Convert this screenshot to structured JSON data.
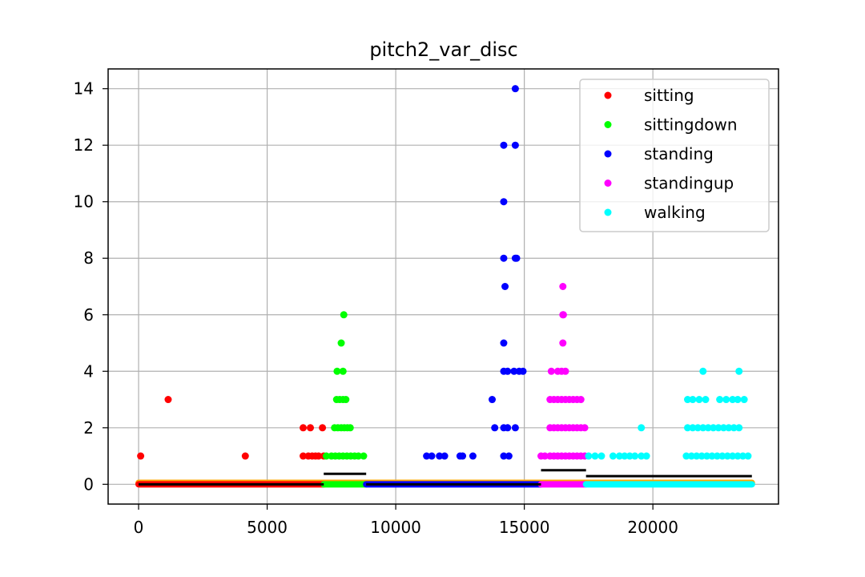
{
  "chart_data": {
    "type": "scatter",
    "title": "pitch2_var_disc",
    "xlabel": "",
    "ylabel": "",
    "xlim": [
      -1185,
      24885
    ],
    "ylim": [
      -0.7,
      14.7
    ],
    "x_ticks": [
      0,
      5000,
      10000,
      15000,
      20000
    ],
    "x_tick_labels": [
      "0",
      "5000",
      "10000",
      "15000",
      "20000"
    ],
    "y_ticks": [
      0,
      2,
      4,
      6,
      8,
      10,
      12,
      14
    ],
    "y_tick_labels": [
      "0",
      "2",
      "4",
      "6",
      "8",
      "10",
      "12",
      "14"
    ],
    "grid": true,
    "legend_position": "top-right",
    "series": [
      {
        "name": "sitting",
        "color": "#ff0000",
        "x_range": [
          0,
          7200
        ],
        "points": [
          [
            80,
            1
          ],
          [
            1150,
            3
          ],
          [
            4150,
            1
          ],
          [
            6400,
            2
          ],
          [
            6680,
            2
          ],
          [
            6400,
            1
          ],
          [
            6600,
            1
          ],
          [
            6750,
            1
          ],
          [
            6880,
            1
          ],
          [
            7000,
            1
          ],
          [
            7150,
            2
          ],
          [
            7200,
            1
          ]
        ]
      },
      {
        "name": "sittingdown",
        "color": "#00ff00",
        "x_range": [
          7200,
          8850
        ],
        "points": [
          [
            7980,
            6
          ],
          [
            7880,
            5
          ],
          [
            7720,
            4
          ],
          [
            7950,
            4
          ],
          [
            7700,
            3
          ],
          [
            7820,
            3
          ],
          [
            7950,
            3
          ],
          [
            8060,
            3
          ],
          [
            7620,
            2
          ],
          [
            7750,
            2
          ],
          [
            7880,
            2
          ],
          [
            8000,
            2
          ],
          [
            8120,
            2
          ],
          [
            8230,
            2
          ],
          [
            7300,
            1
          ],
          [
            7500,
            1
          ],
          [
            7650,
            1
          ],
          [
            7800,
            1
          ],
          [
            7950,
            1
          ],
          [
            8100,
            1
          ],
          [
            8250,
            1
          ],
          [
            8400,
            1
          ],
          [
            8550,
            1
          ],
          [
            8750,
            1
          ]
        ]
      },
      {
        "name": "standing",
        "color": "#0000ff",
        "x_range": [
          8850,
          15650
        ],
        "points": [
          [
            14650,
            14
          ],
          [
            14200,
            12
          ],
          [
            14650,
            12
          ],
          [
            14200,
            10
          ],
          [
            14200,
            8
          ],
          [
            14650,
            8
          ],
          [
            14700,
            8
          ],
          [
            14250,
            7
          ],
          [
            14200,
            5
          ],
          [
            14200,
            4
          ],
          [
            14350,
            4
          ],
          [
            14600,
            4
          ],
          [
            14800,
            4
          ],
          [
            14950,
            4
          ],
          [
            13750,
            3
          ],
          [
            13850,
            2
          ],
          [
            14200,
            2
          ],
          [
            14350,
            2
          ],
          [
            14650,
            2
          ],
          [
            11200,
            1
          ],
          [
            11400,
            1
          ],
          [
            11700,
            1
          ],
          [
            11900,
            1
          ],
          [
            12500,
            1
          ],
          [
            12600,
            1
          ],
          [
            13000,
            1
          ],
          [
            14200,
            1
          ],
          [
            14400,
            1
          ]
        ]
      },
      {
        "name": "standingup",
        "color": "#ff00ff",
        "x_range": [
          15650,
          17400
        ],
        "points": [
          [
            16500,
            7
          ],
          [
            16500,
            6
          ],
          [
            16520,
            6
          ],
          [
            16500,
            5
          ],
          [
            16050,
            4
          ],
          [
            16300,
            4
          ],
          [
            16450,
            4
          ],
          [
            16600,
            4
          ],
          [
            16000,
            3
          ],
          [
            16150,
            3
          ],
          [
            16300,
            3
          ],
          [
            16450,
            3
          ],
          [
            16600,
            3
          ],
          [
            16750,
            3
          ],
          [
            16900,
            3
          ],
          [
            17050,
            3
          ],
          [
            17200,
            3
          ],
          [
            16000,
            2
          ],
          [
            16150,
            2
          ],
          [
            16300,
            2
          ],
          [
            16450,
            2
          ],
          [
            16600,
            2
          ],
          [
            16750,
            2
          ],
          [
            16900,
            2
          ],
          [
            17050,
            2
          ],
          [
            17200,
            2
          ],
          [
            17350,
            2
          ],
          [
            15650,
            1
          ],
          [
            15800,
            1
          ],
          [
            16000,
            1
          ],
          [
            16150,
            1
          ],
          [
            16300,
            1
          ],
          [
            16450,
            1
          ],
          [
            16600,
            1
          ],
          [
            16750,
            1
          ],
          [
            16900,
            1
          ],
          [
            17050,
            1
          ],
          [
            17200,
            1
          ],
          [
            17350,
            1
          ]
        ]
      },
      {
        "name": "walking",
        "color": "#00ffff",
        "x_range": [
          17400,
          23850
        ],
        "points": [
          [
            21950,
            4
          ],
          [
            23350,
            4
          ],
          [
            21350,
            3
          ],
          [
            21550,
            3
          ],
          [
            21800,
            3
          ],
          [
            22050,
            3
          ],
          [
            22600,
            3
          ],
          [
            22850,
            3
          ],
          [
            23100,
            3
          ],
          [
            23300,
            3
          ],
          [
            23550,
            3
          ],
          [
            19550,
            2
          ],
          [
            21350,
            2
          ],
          [
            21550,
            2
          ],
          [
            21750,
            2
          ],
          [
            21950,
            2
          ],
          [
            22150,
            2
          ],
          [
            22350,
            2
          ],
          [
            22550,
            2
          ],
          [
            22750,
            2
          ],
          [
            22950,
            2
          ],
          [
            23150,
            2
          ],
          [
            23350,
            2
          ],
          [
            17500,
            1
          ],
          [
            17750,
            1
          ],
          [
            18000,
            1
          ],
          [
            18450,
            1
          ],
          [
            18700,
            1
          ],
          [
            18900,
            1
          ],
          [
            19100,
            1
          ],
          [
            19300,
            1
          ],
          [
            19550,
            1
          ],
          [
            19750,
            1
          ],
          [
            21300,
            1
          ],
          [
            21500,
            1
          ],
          [
            21700,
            1
          ],
          [
            21900,
            1
          ],
          [
            22100,
            1
          ],
          [
            22300,
            1
          ],
          [
            22500,
            1
          ],
          [
            22700,
            1
          ],
          [
            22900,
            1
          ],
          [
            23100,
            1
          ],
          [
            23300,
            1
          ],
          [
            23500,
            1
          ],
          [
            23700,
            1
          ]
        ]
      }
    ],
    "zero_band": {
      "color": "#ffa500",
      "x_range": [
        0,
        23850
      ],
      "y": 0.05
    },
    "mean_lines": [
      {
        "color": "#000000",
        "x_range": [
          0,
          7200
        ],
        "y": 0.0
      },
      {
        "color": "#000000",
        "x_range": [
          7200,
          8850
        ],
        "y": 0.37
      },
      {
        "color": "#000000",
        "x_range": [
          8850,
          15650
        ],
        "y": 0.0
      },
      {
        "color": "#000000",
        "x_range": [
          15650,
          17400
        ],
        "y": 0.5
      },
      {
        "color": "#000000",
        "x_range": [
          17400,
          23850
        ],
        "y": 0.29
      }
    ]
  }
}
